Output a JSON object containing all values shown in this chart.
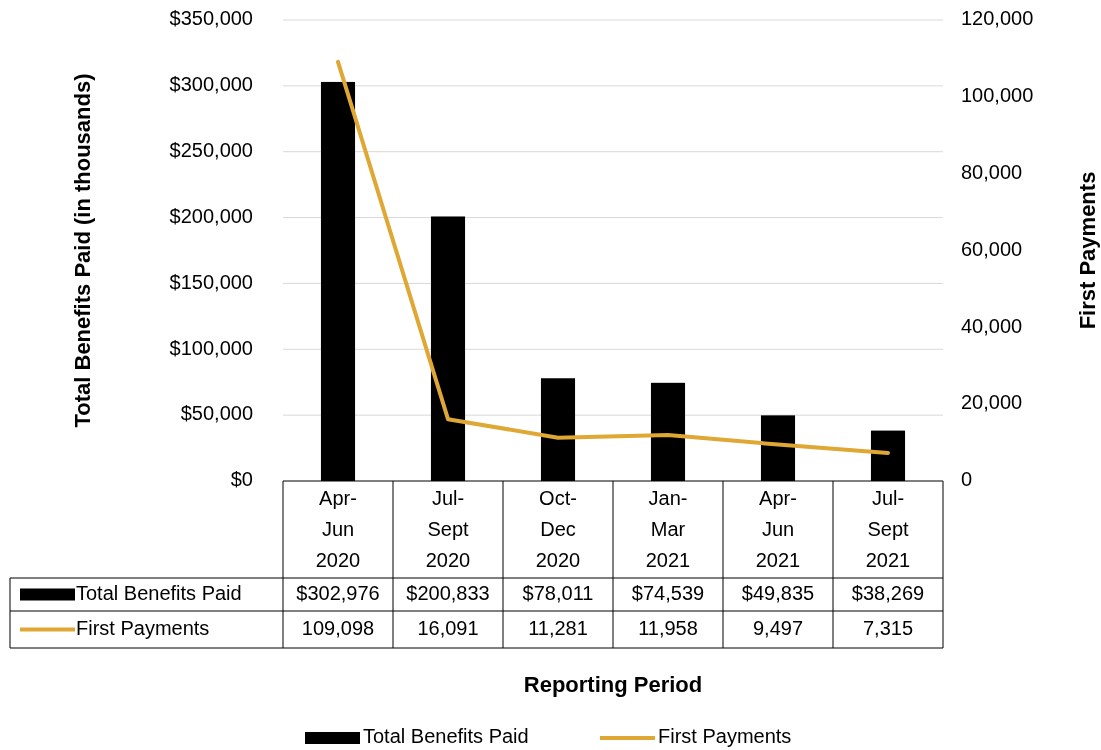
{
  "chart_data": {
    "type": "bar",
    "categories": [
      "Apr-Jun 2020",
      "Jul-Sept 2020",
      "Oct-Dec 2020",
      "Jan-Mar 2021",
      "Apr-Jun 2021",
      "Jul-Sept 2021"
    ],
    "series": [
      {
        "name": "Total Benefits Paid",
        "color": "#000000",
        "values": [
          302976,
          200833,
          78011,
          74539,
          49835,
          38269
        ],
        "value_labels": [
          "$302,976",
          "$200,833",
          "$78,011",
          "$74,539",
          "$49,835",
          "$38,269"
        ]
      },
      {
        "name": "First Payments",
        "type": "line",
        "axis": "y2",
        "color": "#dfa733",
        "values": [
          109098,
          16091,
          11281,
          11958,
          9497,
          7315
        ],
        "value_labels": [
          "109,098",
          "16,091",
          "11,281",
          "11,958",
          "9,497",
          "7,315"
        ]
      }
    ],
    "ylim": [
      0,
      350000
    ],
    "yticks": [
      {
        "value": 0,
        "label": "$0"
      },
      {
        "value": 50000,
        "label": "$50,000"
      },
      {
        "value": 100000,
        "label": "$100,000"
      },
      {
        "value": 150000,
        "label": "$150,000"
      },
      {
        "value": 200000,
        "label": "$200,000"
      },
      {
        "value": 250000,
        "label": "$250,000"
      },
      {
        "value": 300000,
        "label": "$300,000"
      },
      {
        "value": 350000,
        "label": "$350,000"
      }
    ],
    "y2lim": [
      0,
      120000
    ],
    "y2ticks": [
      {
        "value": 0,
        "label": "0"
      },
      {
        "value": 20000,
        "label": "20,000"
      },
      {
        "value": 40000,
        "label": "40,000"
      },
      {
        "value": 60000,
        "label": "60,000"
      },
      {
        "value": 80000,
        "label": "80,000"
      },
      {
        "value": 100000,
        "label": "100,000"
      },
      {
        "value": 120000,
        "label": "120,000"
      }
    ],
    "xlabel": "Reporting Period",
    "ylabel": "Total Benefits Paid (in thousands)",
    "y2label": "First Payments",
    "grid": "y",
    "legend": "bottom",
    "marker": "none",
    "line_style": "solid"
  }
}
